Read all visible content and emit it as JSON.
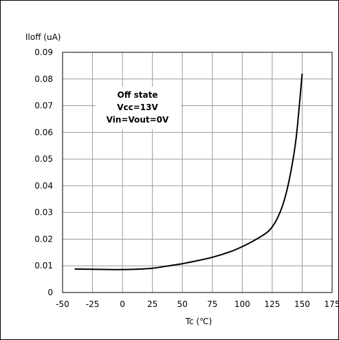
{
  "chart_data": {
    "type": "line",
    "title": "",
    "xlabel": "Tc (℃)",
    "ylabel": "Iloff (uA)",
    "xlim": [
      -50,
      175
    ],
    "ylim": [
      0,
      0.09
    ],
    "x_ticks": [
      "-50",
      "-25",
      "0",
      "25",
      "50",
      "75",
      "100",
      "125",
      "150",
      "175"
    ],
    "y_ticks": [
      "0",
      "0.01",
      "0.02",
      "0.03",
      "0.04",
      "0.05",
      "0.06",
      "0.07",
      "0.08",
      "0.09"
    ],
    "grid": true,
    "annotation": [
      "Off state",
      "Vcc=13V",
      "Vin=Vout=0V"
    ],
    "series": [
      {
        "color": "#000000",
        "x": [
          -40,
          -25,
          -10,
          0,
          10,
          25,
          40,
          50,
          60,
          75,
          90,
          100,
          110,
          120,
          125,
          130,
          135,
          140,
          145,
          150
        ],
        "y": [
          0.0088,
          0.0087,
          0.0086,
          0.0086,
          0.0087,
          0.0091,
          0.0101,
          0.0108,
          0.0117,
          0.0132,
          0.0153,
          0.0172,
          0.0195,
          0.0223,
          0.0246,
          0.0285,
          0.0345,
          0.044,
          0.058,
          0.082
        ]
      }
    ]
  }
}
